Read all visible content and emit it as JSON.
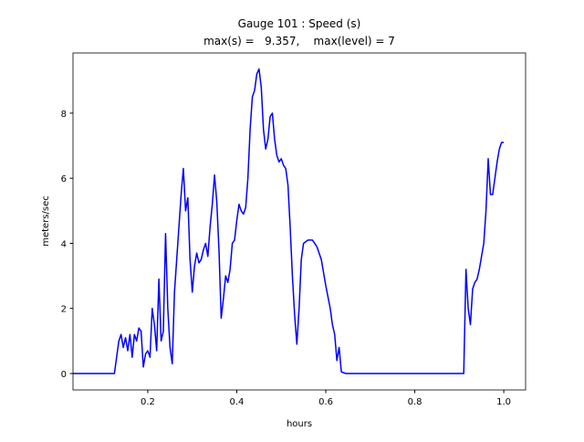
{
  "chart_data": {
    "type": "line",
    "title": "Gauge 101 : Speed (s)",
    "subtitle": "max(s) =   9.357,    max(level) = 7",
    "xlabel": "hours",
    "ylabel": "meters/sec",
    "xlim": [
      0.032,
      1.049
    ],
    "ylim": [
      -0.505,
      9.85
    ],
    "xticks": [
      0.2,
      0.4,
      0.6,
      0.8,
      {
        "value": 1,
        "label": "1.0"
      }
    ],
    "yticks": [
      0,
      2,
      4,
      6,
      8
    ],
    "grid": false,
    "x": [
      0.032,
      0.125,
      0.13,
      0.135,
      0.14,
      0.145,
      0.15,
      0.155,
      0.16,
      0.165,
      0.17,
      0.175,
      0.18,
      0.185,
      0.19,
      0.195,
      0.2,
      0.205,
      0.21,
      0.215,
      0.22,
      0.225,
      0.23,
      0.235,
      0.24,
      0.245,
      0.25,
      0.255,
      0.26,
      0.265,
      0.27,
      0.275,
      0.28,
      0.285,
      0.29,
      0.295,
      0.3,
      0.305,
      0.31,
      0.315,
      0.32,
      0.325,
      0.33,
      0.335,
      0.34,
      0.345,
      0.35,
      0.355,
      0.36,
      0.365,
      0.37,
      0.375,
      0.38,
      0.385,
      0.39,
      0.395,
      0.4,
      0.405,
      0.41,
      0.415,
      0.42,
      0.425,
      0.43,
      0.435,
      0.44,
      0.445,
      0.45,
      0.455,
      0.46,
      0.465,
      0.47,
      0.475,
      0.48,
      0.485,
      0.49,
      0.495,
      0.5,
      0.505,
      0.51,
      0.515,
      0.52,
      0.525,
      0.53,
      0.535,
      0.54,
      0.545,
      0.55,
      0.56,
      0.57,
      0.58,
      0.59,
      0.6,
      0.61,
      0.615,
      0.62,
      0.625,
      0.63,
      0.635,
      0.645,
      0.91,
      0.915,
      0.92,
      0.925,
      0.93,
      0.935,
      0.94,
      0.945,
      0.95,
      0.955,
      0.96,
      0.965,
      0.97,
      0.975,
      0.98,
      0.985,
      0.99,
      0.995,
      1.0
    ],
    "series": [
      {
        "color": "#0000ff",
        "values": [
          0,
          0,
          0.5,
          1.0,
          1.2,
          0.8,
          1.1,
          0.7,
          1.2,
          0.5,
          1.2,
          1.0,
          1.4,
          1.3,
          0.2,
          0.6,
          0.7,
          0.5,
          2.0,
          1.5,
          0.7,
          2.9,
          1.0,
          1.3,
          4.3,
          2.0,
          0.8,
          0.3,
          2.5,
          3.5,
          4.5,
          5.5,
          6.3,
          5.0,
          5.4,
          3.5,
          2.5,
          3.3,
          3.7,
          3.4,
          3.5,
          3.8,
          4.0,
          3.6,
          4.5,
          5.2,
          6.1,
          5.3,
          3.8,
          1.7,
          2.3,
          3.0,
          2.8,
          3.2,
          4.0,
          4.1,
          4.7,
          5.2,
          5.0,
          4.9,
          5.1,
          6.0,
          7.5,
          8.5,
          8.7,
          9.2,
          9.357,
          8.8,
          7.5,
          6.9,
          7.2,
          7.9,
          8.0,
          7.2,
          6.7,
          6.5,
          6.6,
          6.4,
          6.3,
          5.8,
          4.5,
          3.0,
          1.8,
          0.9,
          2.0,
          3.5,
          4.0,
          4.1,
          4.1,
          3.9,
          3.5,
          2.7,
          2.0,
          1.5,
          1.2,
          0.4,
          0.8,
          0.05,
          0,
          0,
          3.2,
          2.0,
          1.5,
          2.6,
          2.8,
          2.9,
          3.2,
          3.6,
          4.0,
          5.0,
          6.6,
          5.5,
          5.5,
          6.0,
          6.5,
          6.9,
          7.1,
          7.1
        ]
      }
    ]
  }
}
